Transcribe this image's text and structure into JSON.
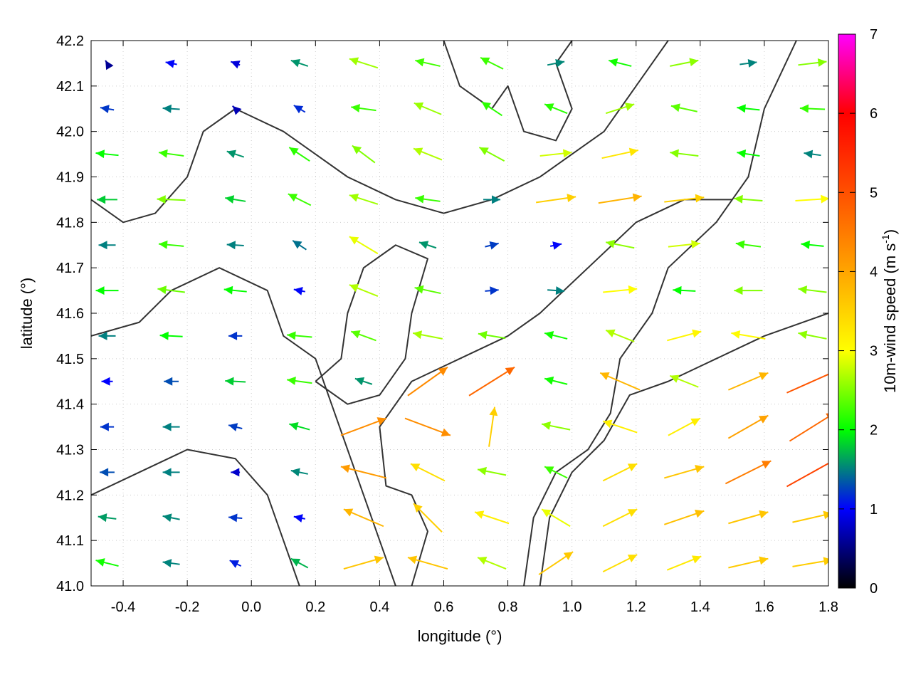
{
  "chart_data": {
    "type": "vector-field",
    "xlabel": "longitude (°)",
    "ylabel": "latitude (°)",
    "xlim": [
      -0.5,
      1.8
    ],
    "ylim": [
      41.0,
      42.2
    ],
    "xticks": [
      "-0.4",
      "-0.2",
      "0.0",
      "0.2",
      "0.4",
      "0.6",
      "0.8",
      "1.0",
      "1.2",
      "1.4",
      "1.6",
      "1.8"
    ],
    "yticks": [
      "41.0",
      "41.1",
      "41.2",
      "41.3",
      "41.4",
      "41.5",
      "41.6",
      "41.7",
      "41.8",
      "41.9",
      "42.0",
      "42.1",
      "42.2"
    ],
    "grid": true,
    "colorbar": {
      "label": "10m-wind speed (m s",
      "label_sup": "-1",
      "label_end": ")",
      "range": [
        0,
        7
      ],
      "ticks": [
        "0",
        "1",
        "2",
        "3",
        "4",
        "5",
        "6",
        "7"
      ],
      "colors": [
        "#000000",
        "#0000ff",
        "#00ff00",
        "#ffff00",
        "#ffa500",
        "#ff5000",
        "#ff0000",
        "#ff00ff"
      ]
    },
    "contour_color": "#333333",
    "grid_lons": [
      -0.45,
      -0.25,
      -0.05,
      0.15,
      0.35,
      0.55,
      0.75,
      0.95,
      1.15,
      1.35,
      1.55,
      1.75
    ],
    "grid_lats": [
      42.15,
      42.05,
      41.95,
      41.85,
      41.75,
      41.65,
      41.55,
      41.45,
      41.35,
      41.25,
      41.15,
      41.05
    ],
    "wind_uv": [
      [
        [
          -0.3,
          0.5
        ],
        [
          -1,
          0.2
        ],
        [
          -0.8,
          0.3
        ],
        [
          -1.5,
          0.5
        ],
        [
          -2.5,
          0.8
        ],
        [
          -2.2,
          0.5
        ],
        [
          -2,
          1
        ],
        [
          1.5,
          0.3
        ],
        [
          -2,
          0.5
        ],
        [
          2.5,
          0.5
        ],
        [
          1.5,
          0.2
        ],
        [
          2.5,
          0.3
        ]
      ],
      [
        [
          -1.2,
          0.2
        ],
        [
          -1.5,
          0.1
        ],
        [
          -0.5,
          0.5
        ],
        [
          -1,
          0.6
        ],
        [
          -2.2,
          0.3
        ],
        [
          -2.4,
          1
        ],
        [
          -1.8,
          1.2
        ],
        [
          -2,
          0.8
        ],
        [
          2.5,
          0.8
        ],
        [
          -2.3,
          0.5
        ],
        [
          -2,
          0.2
        ],
        [
          -2.2,
          0.1
        ]
      ],
      [
        [
          -2,
          0.2
        ],
        [
          -2.2,
          0.3
        ],
        [
          -1.5,
          0.5
        ],
        [
          -1.8,
          1.2
        ],
        [
          -2,
          1.5
        ],
        [
          -2.5,
          1
        ],
        [
          -2.2,
          1.2
        ],
        [
          2.8,
          0.3
        ],
        [
          3.2,
          0.7
        ],
        [
          -2.5,
          0.3
        ],
        [
          -2,
          0.3
        ],
        [
          -1.5,
          0.2
        ]
      ],
      [
        [
          -1.8,
          0
        ],
        [
          -2.5,
          0.1
        ],
        [
          -1.8,
          0.3
        ],
        [
          -2,
          1
        ],
        [
          -2.5,
          0.8
        ],
        [
          -2.2,
          0.3
        ],
        [
          1.5,
          0
        ],
        [
          3.5,
          0.5
        ],
        [
          3.8,
          0.6
        ],
        [
          3.5,
          0.4
        ],
        [
          -2.5,
          0.2
        ],
        [
          3,
          0.2
        ]
      ],
      [
        [
          -1.5,
          0
        ],
        [
          -2.2,
          0.2
        ],
        [
          -1.5,
          0.1
        ],
        [
          -1.2,
          0.8
        ],
        [
          -2.5,
          1.5
        ],
        [
          -1.5,
          0.5
        ],
        [
          1.2,
          0.3
        ],
        [
          1,
          0.2
        ],
        [
          -2.5,
          0.5
        ],
        [
          2.8,
          0.3
        ],
        [
          -2.2,
          0.3
        ],
        [
          -2,
          0.2
        ]
      ],
      [
        [
          -2,
          0
        ],
        [
          -2.4,
          0.3
        ],
        [
          -2,
          0.2
        ],
        [
          -1,
          0.2
        ],
        [
          -2.5,
          1
        ],
        [
          -2.3,
          0.5
        ],
        [
          1.2,
          0.1
        ],
        [
          1.5,
          -0.1
        ],
        [
          3,
          0.3
        ],
        [
          -2,
          0.1
        ],
        [
          -2.5,
          0
        ],
        [
          -2.5,
          0.3
        ]
      ],
      [
        [
          -1.5,
          0
        ],
        [
          -2,
          0.1
        ],
        [
          -1.2,
          0
        ],
        [
          -2.2,
          0.2
        ],
        [
          -2.2,
          0.8
        ],
        [
          -2.6,
          0.5
        ],
        [
          -2.4,
          0.4
        ],
        [
          -2,
          0.5
        ],
        [
          -2.5,
          1
        ],
        [
          3,
          0.8
        ],
        [
          -3,
          0.5
        ],
        [
          -2.5,
          0.5
        ]
      ],
      [
        [
          -1,
          0
        ],
        [
          -1.3,
          0
        ],
        [
          -1.8,
          0.1
        ],
        [
          -2.2,
          0.3
        ],
        [
          -1.5,
          0.5
        ],
        [
          3.5,
          2.5
        ],
        [
          4,
          2.5
        ],
        [
          -2,
          0.5
        ],
        [
          -3.5,
          1.5
        ],
        [
          -2.5,
          1
        ],
        [
          3.5,
          1.5
        ],
        [
          4.5,
          2
        ]
      ],
      [
        [
          -1.2,
          0
        ],
        [
          -1.5,
          0
        ],
        [
          -1.2,
          0.3
        ],
        [
          -1.8,
          0.5
        ],
        [
          4,
          1.5
        ],
        [
          4,
          -1.5
        ],
        [
          0.5,
          3.5
        ],
        [
          -2.5,
          0.5
        ],
        [
          -3,
          1
        ],
        [
          2.8,
          1.5
        ],
        [
          3.5,
          2
        ],
        [
          4,
          2.5
        ]
      ],
      [
        [
          -1.3,
          0
        ],
        [
          -1.5,
          0
        ],
        [
          -0.8,
          0
        ],
        [
          -1.5,
          0.3
        ],
        [
          -4,
          1
        ],
        [
          -3,
          1.5
        ],
        [
          -2.5,
          0.5
        ],
        [
          -2,
          1
        ],
        [
          3,
          1.5
        ],
        [
          3.5,
          1
        ],
        [
          4,
          2
        ],
        [
          4.5,
          2.5
        ]
      ],
      [
        [
          -1.6,
          0.2
        ],
        [
          -1.5,
          0.3
        ],
        [
          -1.2,
          0.1
        ],
        [
          -1,
          0.2
        ],
        [
          -3.5,
          1.5
        ],
        [
          -2.5,
          2.5
        ],
        [
          -3,
          1
        ],
        [
          -2.5,
          1.5
        ],
        [
          3,
          1.5
        ],
        [
          3.5,
          1.2
        ],
        [
          3.5,
          1
        ],
        [
          3.5,
          0.8
        ]
      ],
      [
        [
          -2,
          0.5
        ],
        [
          -1.5,
          0.2
        ],
        [
          -1,
          0.5
        ],
        [
          -1.5,
          0.8
        ],
        [
          3.5,
          1
        ],
        [
          -3.5,
          1
        ],
        [
          -2.5,
          1
        ],
        [
          3,
          2
        ],
        [
          3,
          1.5
        ],
        [
          3,
          1.2
        ],
        [
          3.5,
          0.8
        ],
        [
          3.5,
          0.6
        ]
      ]
    ],
    "contours": [
      [
        [
          0.85,
          41.0
        ],
        [
          0.88,
          41.15
        ],
        [
          0.95,
          41.25
        ],
        [
          1.05,
          41.3
        ],
        [
          1.12,
          41.38
        ],
        [
          1.15,
          41.5
        ],
        [
          1.25,
          41.6
        ],
        [
          1.3,
          41.7
        ],
        [
          1.45,
          41.8
        ],
        [
          1.55,
          41.9
        ],
        [
          1.6,
          42.05
        ],
        [
          1.7,
          42.2
        ]
      ],
      [
        [
          0.9,
          41.0
        ],
        [
          0.93,
          41.15
        ],
        [
          1.0,
          41.25
        ],
        [
          1.1,
          41.32
        ],
        [
          1.18,
          41.42
        ],
        [
          1.3,
          41.45
        ],
        [
          1.45,
          41.5
        ],
        [
          1.6,
          41.55
        ],
        [
          1.8,
          41.6
        ]
      ],
      [
        [
          0.5,
          41.0
        ],
        [
          0.55,
          41.12
        ],
        [
          0.5,
          41.2
        ],
        [
          0.42,
          41.22
        ],
        [
          0.4,
          41.35
        ],
        [
          0.5,
          41.45
        ],
        [
          0.65,
          41.5
        ],
        [
          0.8,
          41.55
        ],
        [
          0.9,
          41.6
        ],
        [
          1.05,
          41.7
        ],
        [
          1.2,
          41.8
        ],
        [
          1.35,
          41.85
        ],
        [
          1.5,
          41.85
        ]
      ],
      [
        [
          -0.5,
          41.55
        ],
        [
          -0.35,
          41.58
        ],
        [
          -0.25,
          41.65
        ],
        [
          -0.1,
          41.7
        ],
        [
          0.05,
          41.65
        ],
        [
          0.1,
          41.55
        ],
        [
          0.2,
          41.5
        ],
        [
          0.25,
          41.4
        ],
        [
          0.3,
          41.3
        ],
        [
          0.35,
          41.2
        ],
        [
          0.4,
          41.1
        ],
        [
          0.45,
          41.0
        ]
      ],
      [
        [
          -0.5,
          41.85
        ],
        [
          -0.4,
          41.8
        ],
        [
          -0.3,
          41.82
        ],
        [
          -0.2,
          41.9
        ],
        [
          -0.15,
          42.0
        ],
        [
          -0.05,
          42.05
        ],
        [
          0.1,
          42.0
        ],
        [
          0.2,
          41.95
        ],
        [
          0.3,
          41.9
        ],
        [
          0.45,
          41.85
        ],
        [
          0.6,
          41.82
        ],
        [
          0.75,
          41.85
        ],
        [
          0.9,
          41.9
        ],
        [
          1.0,
          41.95
        ],
        [
          1.1,
          42.0
        ],
        [
          1.2,
          42.1
        ],
        [
          1.3,
          42.2
        ]
      ],
      [
        [
          -0.5,
          41.2
        ],
        [
          -0.35,
          41.25
        ],
        [
          -0.2,
          41.3
        ],
        [
          -0.05,
          41.28
        ],
        [
          0.05,
          41.2
        ],
        [
          0.1,
          41.1
        ],
        [
          0.15,
          41.0
        ]
      ],
      [
        [
          0.6,
          42.2
        ],
        [
          0.65,
          42.1
        ],
        [
          0.75,
          42.05
        ],
        [
          0.8,
          42.1
        ],
        [
          0.85,
          42.0
        ],
        [
          0.95,
          41.98
        ],
        [
          1.0,
          42.05
        ],
        [
          0.95,
          42.15
        ],
        [
          1.0,
          42.2
        ]
      ],
      [
        [
          0.2,
          41.45
        ],
        [
          0.28,
          41.5
        ],
        [
          0.3,
          41.6
        ],
        [
          0.35,
          41.7
        ],
        [
          0.45,
          41.75
        ],
        [
          0.55,
          41.72
        ],
        [
          0.5,
          41.6
        ],
        [
          0.48,
          41.5
        ],
        [
          0.4,
          41.42
        ],
        [
          0.3,
          41.4
        ],
        [
          0.2,
          41.45
        ]
      ]
    ]
  }
}
